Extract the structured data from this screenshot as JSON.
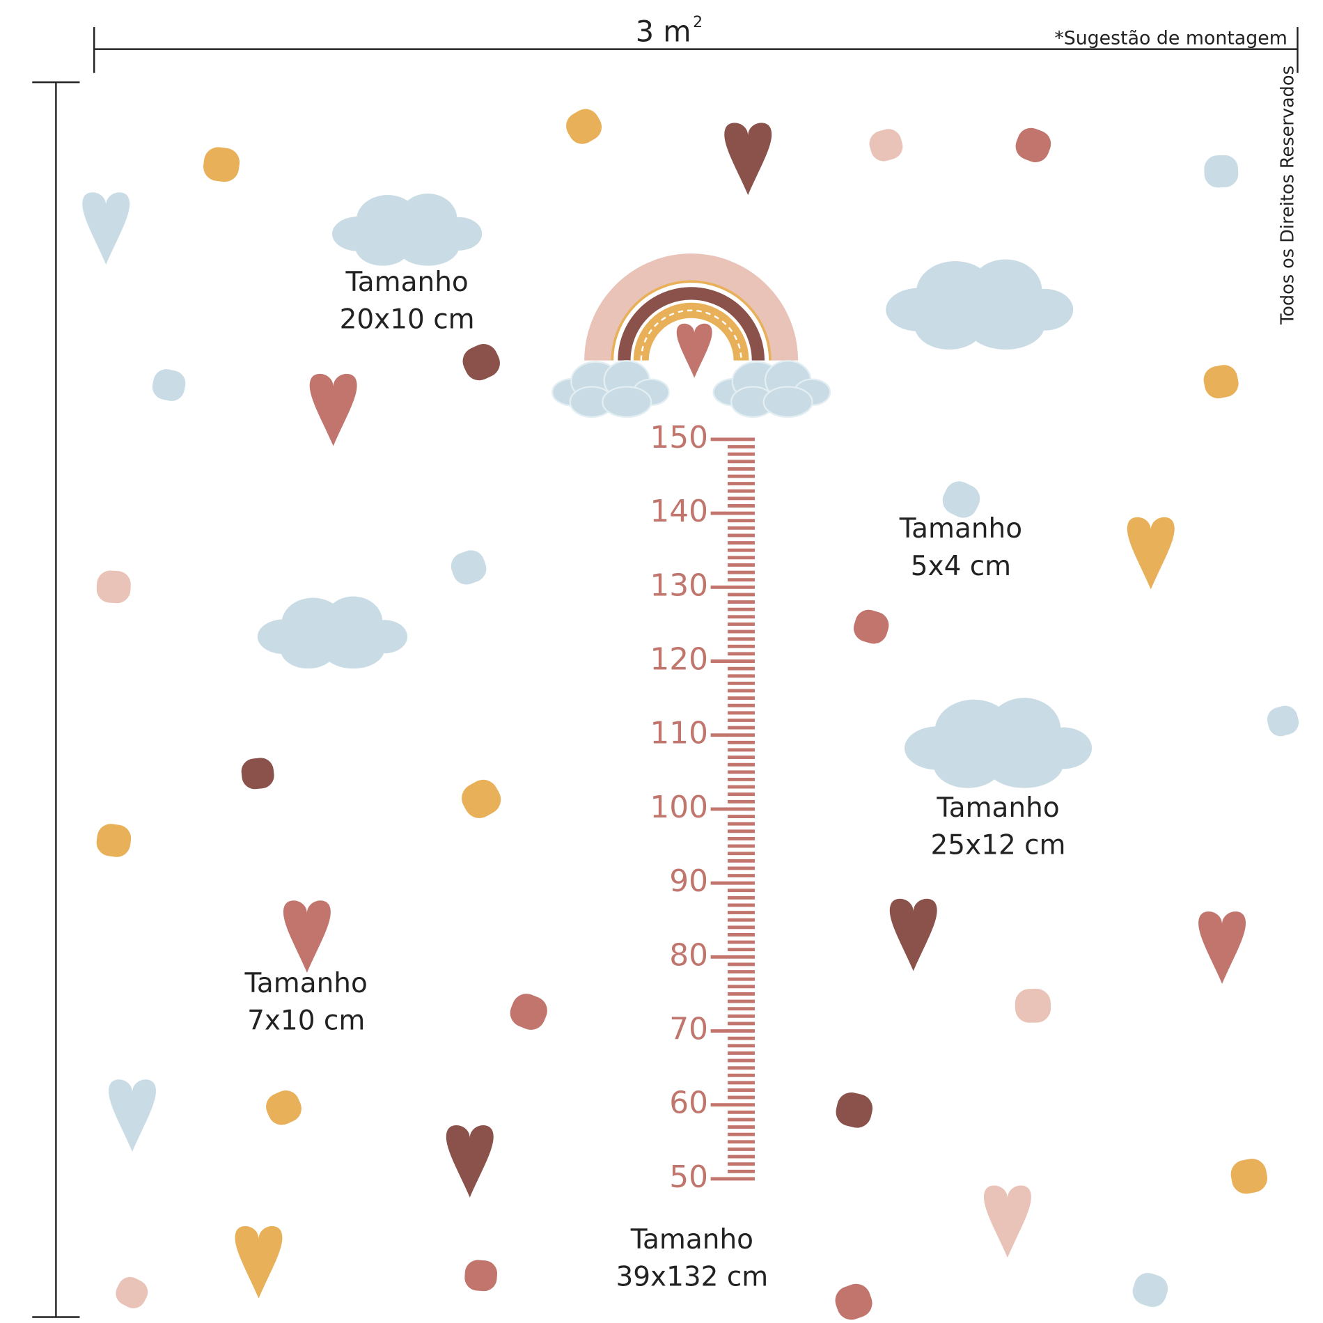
{
  "header": {
    "width_label": "3 m",
    "width_exponent": "2",
    "note": "*Sugestão de montagem",
    "rights": "Todos os Direitos Reservados"
  },
  "stickers": [
    {
      "title": "Tamanho",
      "size": "20x10 cm"
    },
    {
      "title": "Tamanho",
      "size": "5x4 cm"
    },
    {
      "title": "Tamanho",
      "size": "25x12 cm"
    },
    {
      "title": "Tamanho",
      "size": "7x10 cm"
    },
    {
      "title": "Tamanho",
      "size": "39x132 cm"
    }
  ],
  "ruler": {
    "labels": [
      150,
      140,
      130,
      120,
      110,
      100,
      90,
      80,
      70,
      60,
      50
    ]
  }
}
